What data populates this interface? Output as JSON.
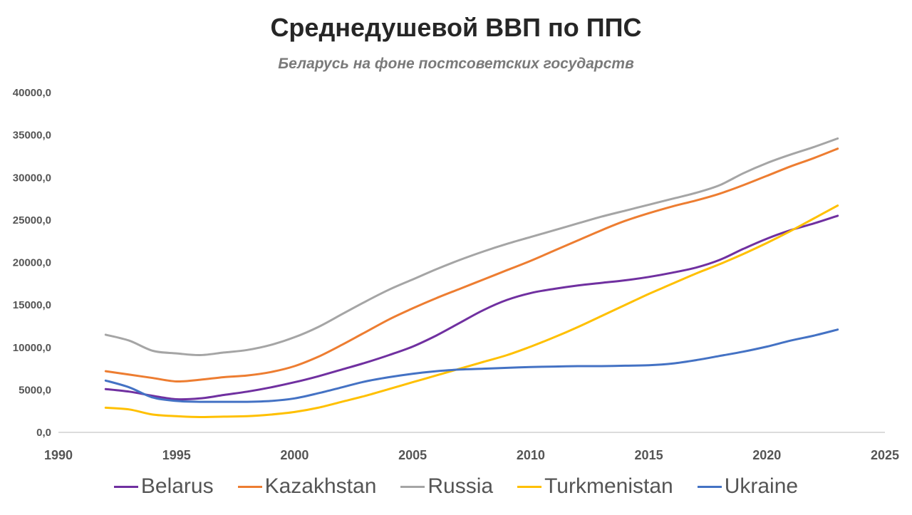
{
  "chart_data": {
    "type": "line",
    "title": "Среднедушевой ВВП по ППС",
    "subtitle": "Беларусь на фоне постсоветских государств",
    "xlabel": "",
    "ylabel": "",
    "xlim": [
      1990,
      2025
    ],
    "ylim": [
      0,
      40000
    ],
    "x_ticks": [
      "1990",
      "1995",
      "2000",
      "2005",
      "2010",
      "2015",
      "2020",
      "2025"
    ],
    "x_tick_values": [
      1990,
      1995,
      2000,
      2005,
      2010,
      2015,
      2020,
      2025
    ],
    "y_ticks": [
      "0,0",
      "5000,0",
      "10000,0",
      "15000,0",
      "20000,0",
      "25000,0",
      "30000,0",
      "35000,0",
      "40000,0"
    ],
    "y_tick_values": [
      0,
      5000,
      10000,
      15000,
      20000,
      25000,
      30000,
      35000,
      40000
    ],
    "grid": false,
    "legend_position": "bottom",
    "x": [
      1992,
      1993,
      1994,
      1995,
      1996,
      1997,
      1998,
      1999,
      2000,
      2001,
      2002,
      2003,
      2004,
      2005,
      2006,
      2007,
      2008,
      2009,
      2010,
      2011,
      2012,
      2013,
      2014,
      2015,
      2016,
      2017,
      2018,
      2019,
      2020,
      2021,
      2022,
      2023
    ],
    "series": [
      {
        "name": "Belarus",
        "color": "#7030a0",
        "values": [
          5100,
          4800,
          4300,
          3900,
          4000,
          4400,
          4800,
          5300,
          5900,
          6600,
          7400,
          8200,
          9100,
          10100,
          11400,
          12900,
          14400,
          15600,
          16400,
          16900,
          17300,
          17600,
          17900,
          18300,
          18800,
          19400,
          20300,
          21600,
          22800,
          23800,
          24600,
          25500
        ]
      },
      {
        "name": "Kazakhstan",
        "color": "#ed7d31",
        "values": [
          7200,
          6800,
          6400,
          6000,
          6200,
          6500,
          6700,
          7100,
          7800,
          8900,
          10300,
          11800,
          13300,
          14600,
          15800,
          16900,
          18000,
          19100,
          20200,
          21400,
          22600,
          23800,
          24900,
          25800,
          26600,
          27300,
          28100,
          29100,
          30200,
          31300,
          32300,
          33400
        ]
      },
      {
        "name": "Russia",
        "color": "#a5a5a5",
        "values": [
          11500,
          10800,
          9600,
          9300,
          9100,
          9400,
          9700,
          10300,
          11200,
          12400,
          13900,
          15400,
          16800,
          18000,
          19200,
          20300,
          21300,
          22200,
          23000,
          23800,
          24600,
          25400,
          26100,
          26800,
          27500,
          28200,
          29100,
          30500,
          31700,
          32700,
          33600,
          34600
        ]
      },
      {
        "name": "Turkmenistan",
        "color": "#ffc000",
        "values": [
          2900,
          2700,
          2100,
          1900,
          1800,
          1850,
          1900,
          2100,
          2400,
          2900,
          3600,
          4300,
          5100,
          5900,
          6700,
          7500,
          8300,
          9100,
          10100,
          11200,
          12400,
          13700,
          15000,
          16300,
          17500,
          18700,
          19800,
          21000,
          22300,
          23700,
          25200,
          26700
        ]
      },
      {
        "name": "Ukraine",
        "color": "#4472c4",
        "values": [
          6100,
          5300,
          4100,
          3700,
          3600,
          3600,
          3600,
          3700,
          4000,
          4600,
          5300,
          6000,
          6500,
          6900,
          7200,
          7400,
          7500,
          7600,
          7700,
          7750,
          7800,
          7800,
          7850,
          7900,
          8100,
          8500,
          9000,
          9500,
          10100,
          10800,
          11400,
          12100
        ]
      }
    ]
  }
}
